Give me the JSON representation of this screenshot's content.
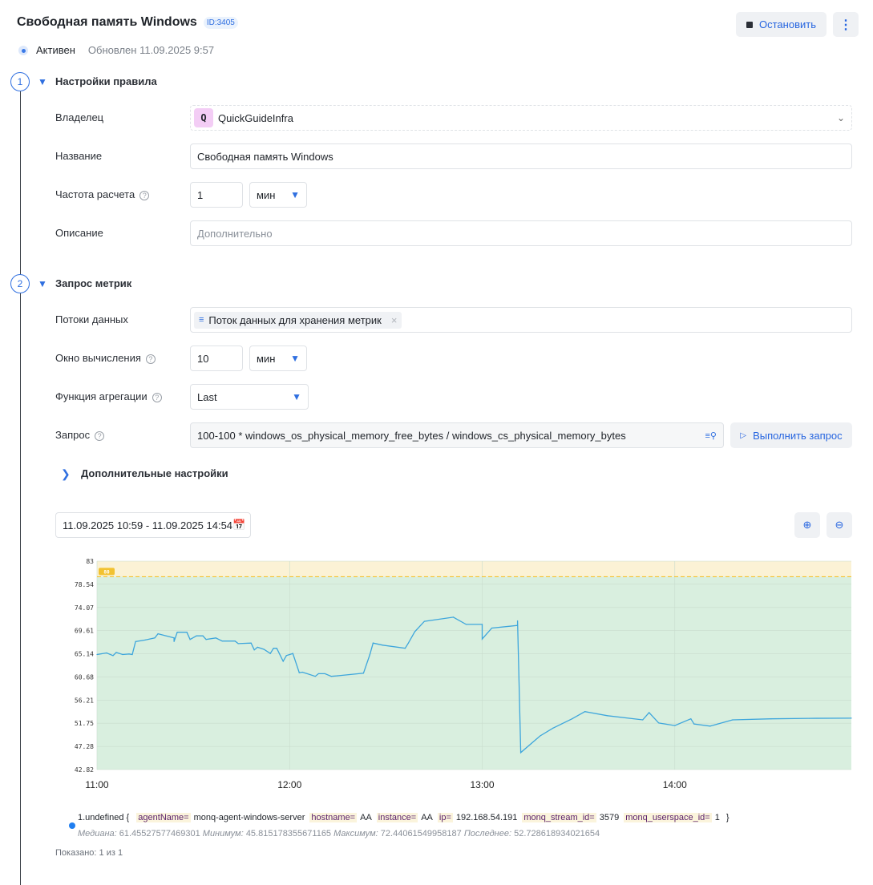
{
  "header": {
    "title": "Свободная память Windows",
    "id_badge": "ID:3405",
    "stop_label": "Остановить",
    "more_icon": "kebab-icon"
  },
  "status": {
    "state": "Активен",
    "updated": "Обновлен 11.09.2025 9:57"
  },
  "section1": {
    "number": "1",
    "title": "Настройки правила",
    "owner_label": "Владелец",
    "owner_avatar": "Q",
    "owner_value": "QuickGuideInfra",
    "name_label": "Название",
    "name_value": "Свободная память Windows",
    "freq_label": "Частота расчета",
    "freq_value": "1",
    "freq_unit": "мин",
    "desc_label": "Описание",
    "desc_placeholder": "Дополнительно"
  },
  "section2": {
    "number": "2",
    "title": "Запрос метрик",
    "streams_label": "Потоки данных",
    "stream_tag": "Поток данных для хранения метрик",
    "window_label": "Окно вычисления",
    "window_value": "10",
    "window_unit": "мин",
    "agg_label": "Функция агрегации",
    "agg_value": "Last",
    "query_label": "Запрос",
    "query_value": "100-100 * windows_os_physical_memory_free_bytes / windows_cs_physical_memory_bytes",
    "run_label": "Выполнить запрос",
    "advanced_label": "Дополнительные настройки"
  },
  "range": {
    "value": "11.09.2025 10:59 - 11.09.2025 14:54"
  },
  "colors": {
    "accent": "#2f6fe0",
    "line": "#3ea6dc",
    "ok_zone": "#d9efdf",
    "warn_zone": "#fbf2d5",
    "threshold": "#f2c230"
  },
  "chart_data": {
    "type": "line",
    "xlim": [
      "11:00",
      "14:55"
    ],
    "ylim": [
      42.82,
      83
    ],
    "yticks": [
      "83",
      "78.54",
      "74.07",
      "69.61",
      "65.14",
      "60.68",
      "56.21",
      "51.75",
      "47.28",
      "42.82"
    ],
    "xticks": [
      "11:00",
      "12:00",
      "13:00",
      "14:00"
    ],
    "threshold": {
      "value": 80,
      "label": "80"
    },
    "grid": true,
    "x": [
      "11:00",
      "11:03",
      "11:05",
      "11:06",
      "11:08",
      "11:10",
      "11:11",
      "11:12",
      "11:15",
      "11:18",
      "11:19",
      "11:24",
      "11:24",
      "11:25",
      "11:28",
      "11:29",
      "11:31",
      "11:33",
      "11:34",
      "11:37",
      "11:39",
      "11:43",
      "11:44",
      "11:48",
      "11:49",
      "11:50",
      "11:52",
      "11:54",
      "11:55",
      "11:56",
      "11:58",
      "11:59",
      "12:01",
      "12:03",
      "12:04",
      "12:08",
      "12:09",
      "12:11",
      "12:13",
      "12:15",
      "12:23",
      "12:25",
      "12:26",
      "12:29",
      "12:36",
      "12:37",
      "12:39",
      "12:42",
      "12:51",
      "12:55",
      "13:00",
      "13:00",
      "13:03",
      "13:11",
      "13:11",
      "13:12",
      "13:18",
      "13:22",
      "13:28",
      "13:32",
      "13:39",
      "13:50",
      "13:52",
      "13:55",
      "14:00",
      "14:05",
      "14:06",
      "14:11",
      "14:18",
      "14:30",
      "14:42",
      "14:55"
    ],
    "series": [
      {
        "name": "1.undefined",
        "values": [
          65.0,
          65.3,
          64.8,
          65.4,
          65.0,
          65.1,
          65.0,
          67.5,
          67.8,
          68.2,
          69.0,
          68.2,
          67.5,
          69.3,
          69.3,
          67.9,
          68.6,
          68.6,
          67.9,
          68.2,
          67.6,
          67.6,
          67.1,
          67.2,
          65.9,
          66.4,
          66.0,
          65.2,
          66.2,
          66.2,
          63.7,
          64.8,
          65.2,
          61.5,
          61.6,
          60.8,
          61.3,
          61.3,
          60.8,
          60.9,
          61.4,
          65.0,
          67.2,
          66.8,
          66.2,
          67.2,
          69.4,
          71.4,
          72.2,
          70.8,
          70.8,
          68.0,
          70.1,
          70.6,
          71.5,
          46.1,
          49.3,
          50.8,
          52.6,
          54.0,
          53.2,
          52.4,
          53.8,
          51.8,
          51.3,
          52.6,
          51.6,
          51.2,
          52.4,
          52.6,
          52.7,
          52.73
        ]
      }
    ]
  },
  "legend": {
    "name": "1.undefined {",
    "labels": [
      {
        "k": "agentName=",
        "v": "monq-agent-windows-server"
      },
      {
        "k": "hostname=",
        "v": "AA"
      },
      {
        "k": "instance=",
        "v": "AA"
      },
      {
        "k": "ip=",
        "v": "192.168.54.191"
      },
      {
        "k": "monq_stream_id=",
        "v": "3579"
      },
      {
        "k": "monq_userspace_id=",
        "v": "1"
      }
    ],
    "close": "}",
    "stats": {
      "median_k": "Медиана:",
      "median": "61.45527577469301",
      "min_k": "Минимум:",
      "min": "45.815178355671165",
      "max_k": "Максимум:",
      "max": "72.44061549958187",
      "last_k": "Последнее:",
      "last": "52.728618934021654"
    }
  },
  "footer": {
    "shown": "Показано: 1 из 1"
  }
}
